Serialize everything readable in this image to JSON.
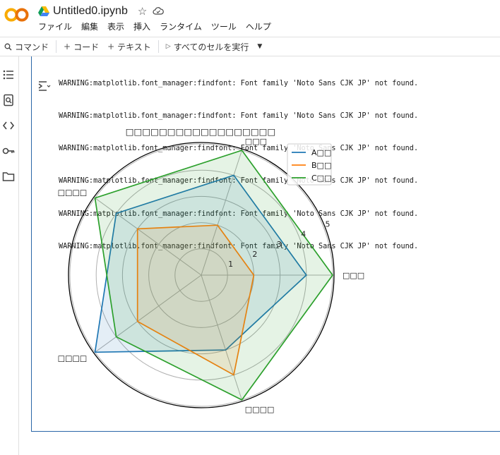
{
  "header": {
    "title": "Untitled0.ipynb",
    "menu": [
      "ファイル",
      "編集",
      "表示",
      "挿入",
      "ランタイム",
      "ツール",
      "ヘルプ"
    ]
  },
  "toolbar": {
    "command": "コマンド",
    "code": "コード",
    "text": "テキスト",
    "run_all": "すべてのセルを実行"
  },
  "output": {
    "warnings": [
      "WARNING:matplotlib.font_manager:findfont: Font family 'Noto Sans CJK JP' not found.",
      "WARNING:matplotlib.font_manager:findfont: Font family 'Noto Sans CJK JP' not found.",
      "WARNING:matplotlib.font_manager:findfont: Font family 'Noto Sans CJK JP' not found.",
      "WARNING:matplotlib.font_manager:findfont: Font family 'Noto Sans CJK JP' not found.",
      "WARNING:matplotlib.font_manager:findfont: Font family 'Noto Sans CJK JP' not found.",
      "WARNING:matplotlib.font_manager:findfont: Font family 'Noto Sans CJK JP' not found."
    ]
  },
  "chart_data": {
    "type": "radar",
    "title": "□□□□□□□□□□□□□□□□□□",
    "axes": [
      "□□□",
      "□□□□",
      "□□□□",
      "□□□□",
      "□□□"
    ],
    "rmax": 5,
    "r_ticks": [
      1,
      2,
      3,
      4,
      5
    ],
    "r_tick_labels": [
      "1",
      "2",
      "3",
      "4",
      "5"
    ],
    "legend_position": "upper-right",
    "series": [
      {
        "name": "A□□",
        "color": "#1f77b4",
        "values": [
          4,
          3,
          5,
          4,
          4
        ]
      },
      {
        "name": "B□□",
        "color": "#ff7f0e",
        "values": [
          2,
          4,
          3,
          3,
          2
        ]
      },
      {
        "name": "C□□",
        "color": "#2ca02c",
        "values": [
          5,
          5,
          4,
          5,
          5
        ]
      }
    ]
  }
}
